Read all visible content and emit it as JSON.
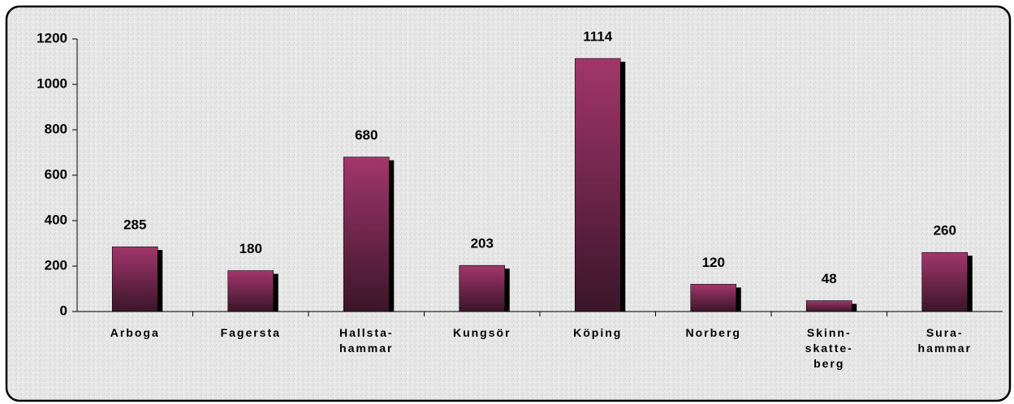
{
  "chart_data": {
    "type": "bar",
    "categories": [
      "Arboga",
      "Fagersta",
      "Hallsta-\nhammar",
      "Kungsör",
      "Köping",
      "Norberg",
      "Skinn-\nskatte-\nberg",
      "Sura-\nhammar"
    ],
    "values": [
      285,
      180,
      680,
      203,
      1114,
      120,
      48,
      260
    ],
    "color": "#9b3466",
    "ylim": [
      0,
      1200
    ],
    "yticks": [
      0,
      200,
      400,
      600,
      800,
      1000,
      1200
    ],
    "grid": false
  }
}
